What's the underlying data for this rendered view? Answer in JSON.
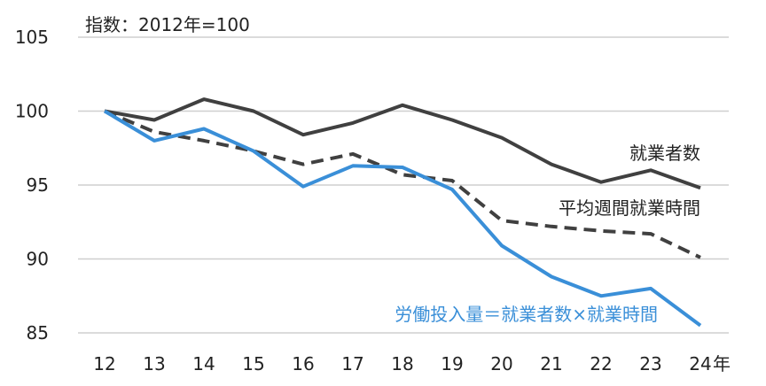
{
  "chart_data": {
    "type": "line",
    "note": "指数：2012年=100",
    "x": [
      "12",
      "13",
      "14",
      "15",
      "16",
      "17",
      "18",
      "19",
      "20",
      "21",
      "22",
      "23",
      "24"
    ],
    "x_unit_label": "年",
    "y_ticks": [
      "105",
      "100",
      "95",
      "90",
      "85"
    ],
    "ylim": [
      85,
      105
    ],
    "grid": true,
    "legend": "inline labels",
    "series": [
      {
        "name": "就業者数",
        "color": "#404040",
        "style": "solid",
        "values": [
          100,
          99.4,
          100.8,
          100.0,
          98.4,
          99.2,
          100.4,
          99.4,
          98.2,
          96.4,
          95.2,
          96.0,
          94.8
        ]
      },
      {
        "name": "平均週間就業時間",
        "color": "#404040",
        "style": "dashed",
        "values": [
          100,
          98.6,
          98.0,
          97.3,
          96.4,
          97.1,
          95.7,
          95.3,
          92.6,
          92.2,
          91.9,
          91.7,
          90.1
        ]
      },
      {
        "name": "労働投入量＝就業者数×就業時間",
        "color": "#3A8FD8",
        "style": "solid",
        "values": [
          100,
          98.0,
          98.8,
          97.3,
          94.9,
          96.3,
          96.2,
          94.7,
          90.9,
          88.8,
          87.5,
          88.0,
          85.5
        ]
      }
    ]
  }
}
